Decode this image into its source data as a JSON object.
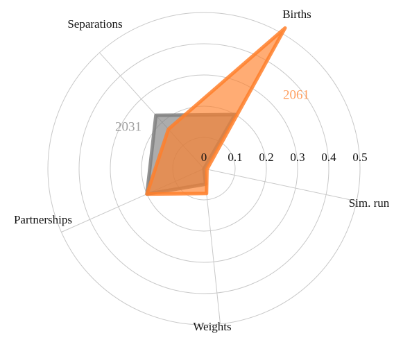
{
  "chart_data": {
    "type": "radar",
    "categories": [
      "Births",
      "Sim. run",
      "Weights",
      "Partnerships",
      "Separations"
    ],
    "series": [
      {
        "name": "2031",
        "color": "#7f7f7f",
        "values": [
          0.2,
          0.0,
          0.05,
          0.2,
          0.23
        ]
      },
      {
        "name": "2061",
        "color": "#ff7f2a",
        "values": [
          0.52,
          0.01,
          0.08,
          0.2,
          0.17
        ]
      }
    ],
    "rlim": [
      0,
      0.5
    ],
    "rticks": [
      0,
      0.1,
      0.2,
      0.3,
      0.4,
      0.5
    ],
    "grid": true
  }
}
